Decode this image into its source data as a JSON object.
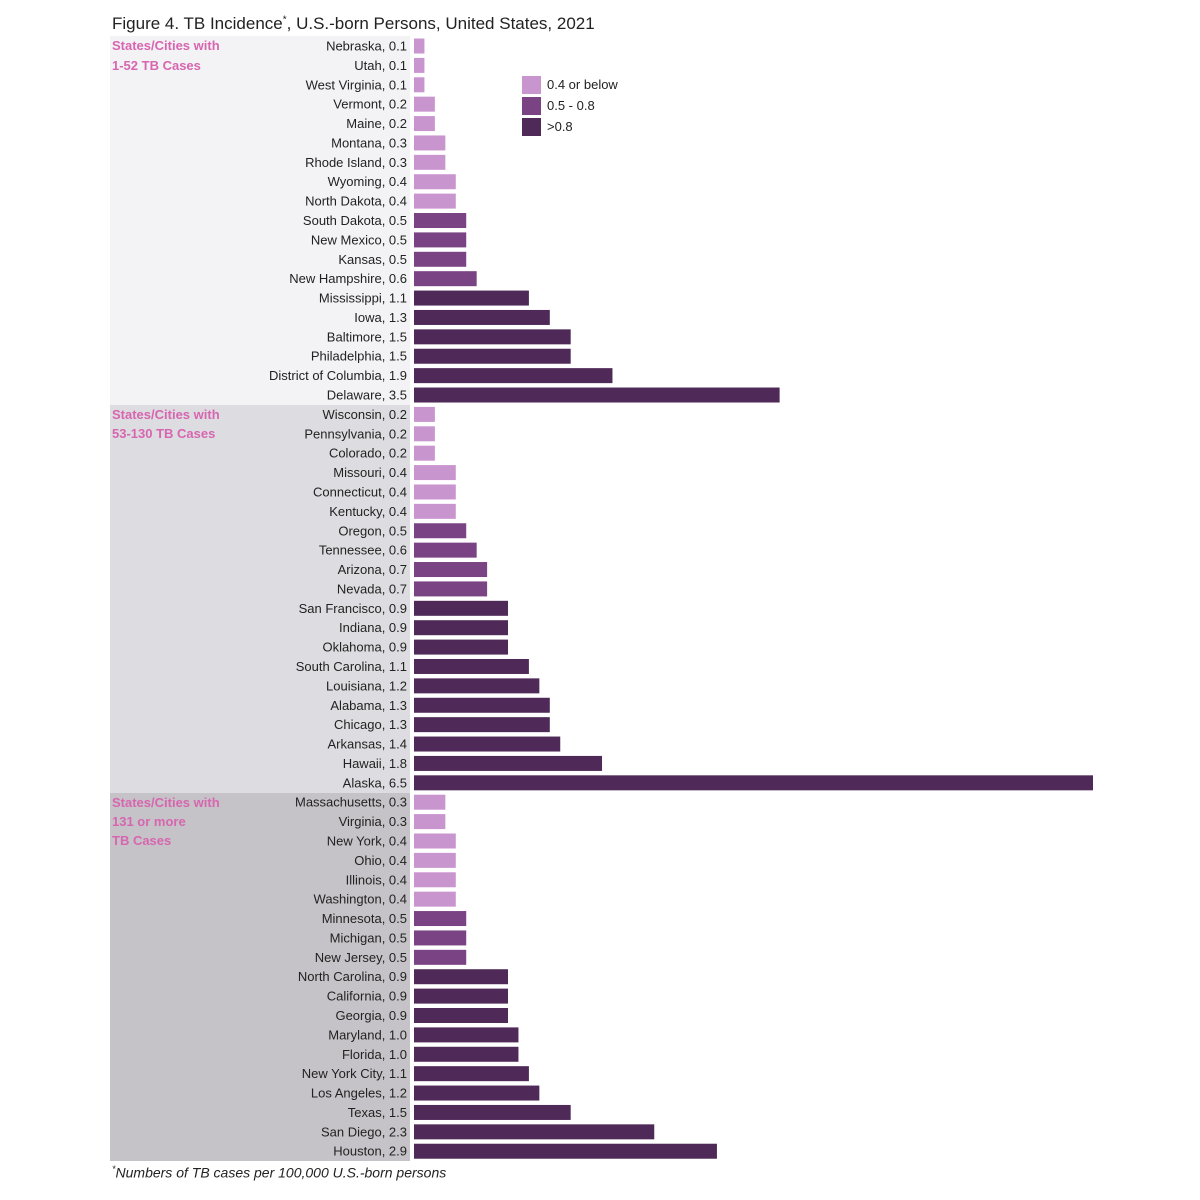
{
  "chart_data": {
    "type": "bar",
    "orientation": "horizontal",
    "title": "Figure 4. TB Incidence",
    "title_marker": "*",
    "title_rest": ", U.S.-born Persons, United States, 2021",
    "footnote_marker": "*",
    "footnote": "Numbers of TB cases per 100,000 U.S.-born persons",
    "legend": [
      {
        "label": "0.4 or below",
        "color": "#c995cf"
      },
      {
        "label": "0.5 - 0.8",
        "color": "#7a4383"
      },
      {
        "label": ">0.8",
        "color": "#4f2a58"
      }
    ],
    "legend_placement": "top-right",
    "grid": false,
    "xlim": [
      0,
      6.5
    ],
    "groups": [
      {
        "label": "States/Cities with\n1-52 TB Cases",
        "background": "#f3f2f4",
        "categories": [
          "Nebraska",
          "Utah",
          "West Virginia",
          "Vermont",
          "Maine",
          "Montana",
          "Rhode Island",
          "Wyoming",
          "North Dakota",
          "South Dakota",
          "New Mexico",
          "Kansas",
          "New Hampshire",
          "Mississippi",
          "Iowa",
          "Baltimore",
          "Philadelphia",
          "District of Columbia",
          "Delaware"
        ],
        "values": [
          0.1,
          0.1,
          0.1,
          0.2,
          0.2,
          0.3,
          0.3,
          0.4,
          0.4,
          0.5,
          0.5,
          0.5,
          0.6,
          1.1,
          1.3,
          1.5,
          1.5,
          1.9,
          3.5
        ]
      },
      {
        "label": "States/Cities with\n53-130 TB Cases",
        "background": "#dddce0",
        "categories": [
          "Wisconsin",
          "Pennsylvania",
          "Colorado",
          "Missouri",
          "Connecticut",
          "Kentucky",
          "Oregon",
          "Tennessee",
          "Arizona",
          "Nevada",
          "San Francisco",
          "Indiana",
          "Oklahoma",
          "South Carolina",
          "Louisiana",
          "Alabama",
          "Chicago",
          "Arkansas",
          "Hawaii",
          "Alaska"
        ],
        "values": [
          0.2,
          0.2,
          0.2,
          0.4,
          0.4,
          0.4,
          0.5,
          0.6,
          0.7,
          0.7,
          0.9,
          0.9,
          0.9,
          1.1,
          1.2,
          1.3,
          1.3,
          1.4,
          1.8,
          6.5
        ]
      },
      {
        "label": "States/Cities with\n131 or more\nTB Cases",
        "background": "#c5c3c7",
        "categories": [
          "Massachusetts",
          "Virginia",
          "New York",
          "Ohio",
          "Illinois",
          "Washington",
          "Minnesota",
          "Michigan",
          "New Jersey",
          "North Carolina",
          "California",
          "Georgia",
          "Maryland",
          "Florida",
          "New York City",
          "Los Angeles",
          "Texas",
          "San Diego",
          "Houston"
        ],
        "values": [
          0.3,
          0.3,
          0.4,
          0.4,
          0.4,
          0.4,
          0.5,
          0.5,
          0.5,
          0.9,
          0.9,
          0.9,
          1.0,
          1.0,
          1.1,
          1.2,
          1.5,
          2.3,
          2.9
        ]
      }
    ]
  }
}
